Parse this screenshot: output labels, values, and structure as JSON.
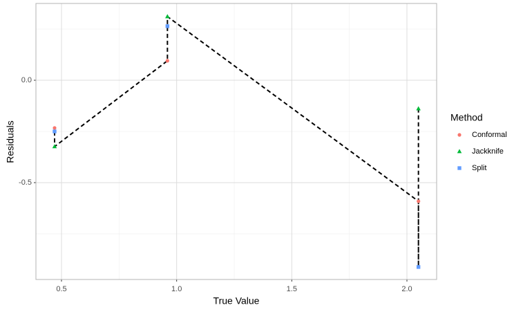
{
  "chart_data": {
    "type": "scatter",
    "x_label": "True Value",
    "y_label": "Residuals",
    "x": [
      0.47,
      0.96,
      2.05
    ],
    "series": [
      {
        "name": "Conformal",
        "color": "#F8766D",
        "shape": "circle",
        "values": [
          -0.233,
          0.095,
          -0.591
        ]
      },
      {
        "name": "Jackknife",
        "color": "#00BA38",
        "shape": "triangle",
        "values": [
          -0.324,
          0.311,
          -0.139
        ]
      },
      {
        "name": "Split",
        "color": "#619CFF",
        "shape": "square",
        "values": [
          -0.25,
          0.264,
          -0.912
        ]
      }
    ],
    "path": {
      "color": "#000000",
      "dash": true,
      "x": [
        0.47,
        0.47,
        0.96,
        0.96,
        0.96,
        2.05,
        2.05,
        2.05
      ],
      "y": [
        -0.25,
        -0.324,
        0.095,
        0.264,
        0.311,
        -0.591,
        -0.912,
        -0.139
      ]
    },
    "legend_title": "Method",
    "legend_position": "right",
    "xlim": [
      0.389,
      2.129
    ],
    "ylim": [
      -0.973,
      0.375
    ],
    "xticks": [
      0.5,
      {
        "value": 1,
        "label": "1.0"
      },
      1.5,
      {
        "value": 2,
        "label": "2.0"
      }
    ],
    "yticks": [
      -0.5,
      {
        "value": 0,
        "label": "0.0"
      }
    ],
    "xminor": [
      0.75,
      1.25,
      1.75
    ],
    "yminor": [
      -0.75,
      -0.25,
      0.25
    ],
    "grid": true
  }
}
